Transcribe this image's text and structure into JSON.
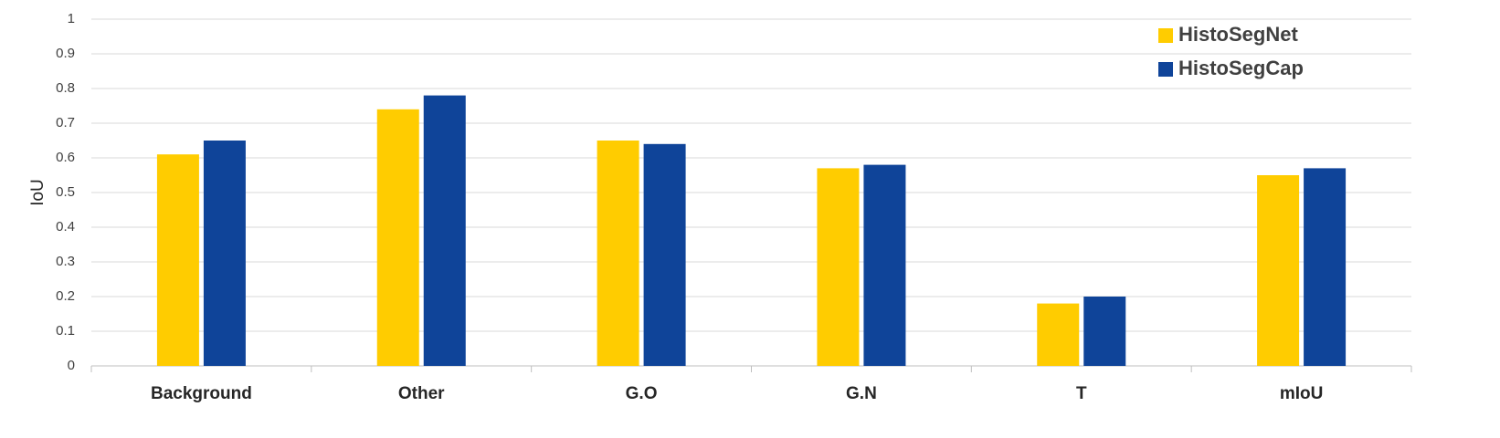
{
  "chart_data": {
    "type": "bar",
    "y_label": "IoU",
    "categories": [
      "Background",
      "Other",
      "G.O",
      "G.N",
      "T",
      "mIoU"
    ],
    "series": [
      {
        "name": "HistoSegNet",
        "color": "#ffcc00",
        "values": [
          0.61,
          0.74,
          0.65,
          0.57,
          0.18,
          0.55
        ]
      },
      {
        "name": "HistoSegCap",
        "color": "#0f4499",
        "values": [
          0.65,
          0.78,
          0.64,
          0.58,
          0.2,
          0.57
        ]
      }
    ],
    "ylim": [
      0,
      1
    ],
    "yticks": [
      0,
      0.1,
      0.2,
      0.3,
      0.4,
      0.5,
      0.6,
      0.7,
      0.8,
      0.9,
      1
    ],
    "grid": true,
    "legend": "top-right"
  }
}
